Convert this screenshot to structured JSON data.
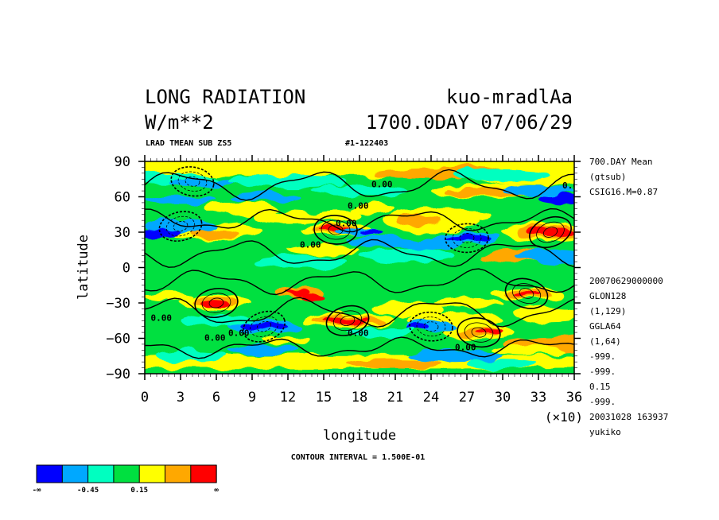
{
  "title": {
    "line1_left": "LONG RADIATION",
    "line1_right": "kuo-mradlAa",
    "line2_left": "W/m**2",
    "line2_right": "1700.0DAY 07/06/29"
  },
  "subtitle": {
    "left": "LRAD TMEAN SUB ZS5",
    "right": "#1-122403"
  },
  "side_info": {
    "top": [
      "700.DAY Mean",
      "(gtsub)",
      "CSIG16.M=0.87"
    ],
    "bottom": [
      "20070629000000",
      "GLON128",
      "(1,129)",
      "GGLA64",
      "(1,64)",
      "-999.",
      "-999.",
      "0.15",
      "-999.",
      "20031028 163937",
      "yukiko"
    ]
  },
  "x_scale_note": "(×10)",
  "contour_interval_label": "CONTOUR INTERVAL = 1.500E-01",
  "contour_labels": [
    "0.00",
    "0.00",
    "0.00",
    "0.00",
    "0.00",
    "0.00",
    "0.00",
    "0.00",
    "0.00",
    "0.00"
  ],
  "colorbar": {
    "colors": [
      "#0000ff",
      "#00a8ff",
      "#00ffc0",
      "#00e040",
      "#ffff00",
      "#ffa800",
      "#ff0000"
    ],
    "tick_labels": [
      "-∞",
      "-0.45",
      "0.15",
      "∞"
    ]
  },
  "chart_data": {
    "type": "heatmap",
    "xlabel": "longitude",
    "ylabel": "latitude",
    "xlim": [
      0,
      36
    ],
    "ylim": [
      -90,
      90
    ],
    "x_ticks": [
      "0",
      "3",
      "6",
      "9",
      "12",
      "15",
      "18",
      "21",
      "24",
      "27",
      "30",
      "33",
      "36"
    ],
    "y_ticks": [
      "90",
      "60",
      "30",
      "0",
      "−30",
      "−60",
      "−90"
    ],
    "contour_interval": 0.15,
    "features": [
      {
        "lon": 34,
        "lat": 30,
        "level": "max"
      },
      {
        "lon": 16,
        "lat": 32,
        "level": "max"
      },
      {
        "lon": 17,
        "lat": -45,
        "level": "max"
      },
      {
        "lon": 28,
        "lat": -55,
        "level": "max"
      },
      {
        "lon": 6,
        "lat": -30,
        "level": "max"
      },
      {
        "lon": 32,
        "lat": -22,
        "level": "max"
      },
      {
        "lon": 27,
        "lat": 25,
        "level": "min"
      },
      {
        "lon": 10,
        "lat": -50,
        "level": "min"
      },
      {
        "lon": 24,
        "lat": -50,
        "level": "min"
      },
      {
        "lon": 3,
        "lat": 35,
        "level": "min"
      },
      {
        "lon": 4,
        "lat": 73,
        "level": "min"
      }
    ]
  }
}
